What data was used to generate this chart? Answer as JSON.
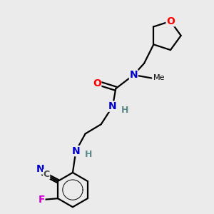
{
  "background_color": "#ebebeb",
  "bond_color": "#000000",
  "atom_colors": {
    "O": "#ff0000",
    "N": "#0000cc",
    "F": "#cc00cc",
    "C_label": "#4a4a4a",
    "H": "#5a8a8a"
  },
  "figsize": [
    3.0,
    3.0
  ],
  "dpi": 100
}
